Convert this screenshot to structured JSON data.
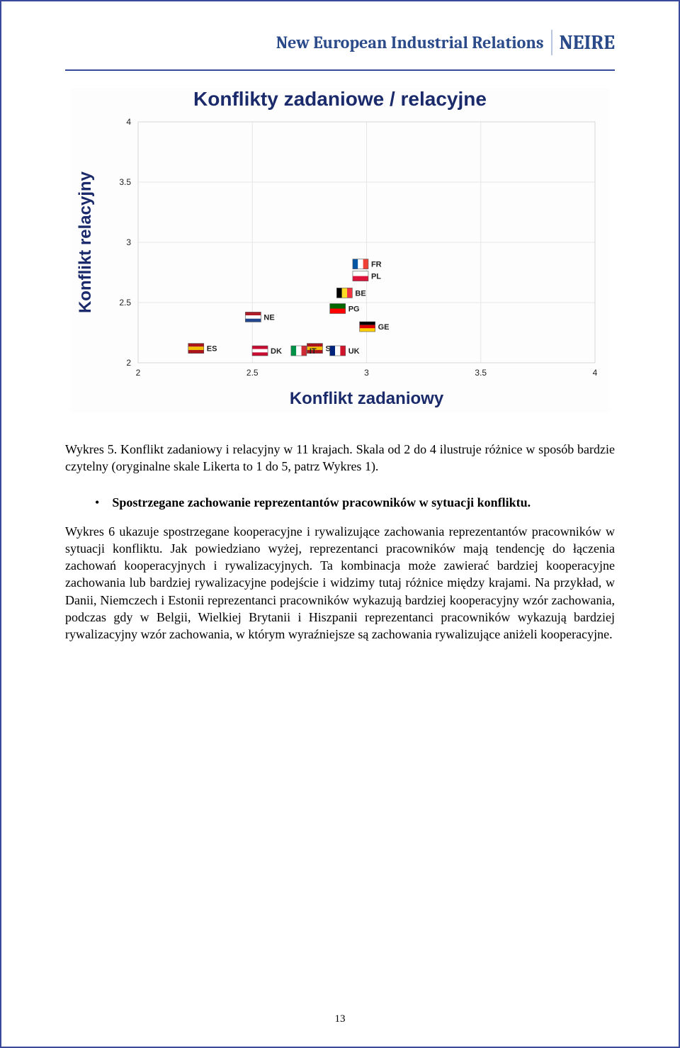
{
  "header": {
    "title": "New European Industrial Relations",
    "logo": "NEIRE"
  },
  "chart": {
    "type": "scatter",
    "title": "Konflikty zadaniowe / relacyjne",
    "xlabel": "Konflikt zadaniowy",
    "ylabel": "Konflikt relacyjny",
    "xlim": [
      2,
      4
    ],
    "ylim": [
      2,
      4
    ],
    "xtick_step": 0.5,
    "ytick_step": 0.5,
    "title_color": "#1a2a6a",
    "axis_label_color": "#1a2a6a",
    "grid_color": "#e6e6e6",
    "background_color": "#ffffff",
    "label_fontsize": 20,
    "tick_fontsize": 12,
    "points": [
      {
        "code": "FR",
        "x": 3.02,
        "y": 2.82,
        "flag_colors": [
          "#0055a4",
          "#ffffff",
          "#ef4135"
        ]
      },
      {
        "code": "PL",
        "x": 3.02,
        "y": 2.72,
        "flag_colors": [
          "#ffffff",
          "#dc143c"
        ]
      },
      {
        "code": "BE",
        "x": 2.95,
        "y": 2.58,
        "flag_colors": [
          "#000000",
          "#fdda24",
          "#ef3340"
        ]
      },
      {
        "code": "PG",
        "x": 2.92,
        "y": 2.45,
        "flag_colors": [
          "#006600",
          "#ff0000"
        ]
      },
      {
        "code": "NE",
        "x": 2.55,
        "y": 2.38,
        "flag_colors": [
          "#ae1c28",
          "#ffffff",
          "#21468b"
        ]
      },
      {
        "code": "GE",
        "x": 3.05,
        "y": 2.3,
        "flag_colors": [
          "#000000",
          "#dd0000",
          "#ffce00"
        ]
      },
      {
        "code": "ES",
        "x": 2.3,
        "y": 2.12,
        "flag_colors": [
          "#aa151b",
          "#f1bf00",
          "#aa151b"
        ]
      },
      {
        "code": "DK",
        "x": 2.58,
        "y": 2.1,
        "flag_colors": [
          "#c60c30",
          "#ffffff",
          "#c60c30"
        ]
      },
      {
        "code": "SP",
        "x": 2.82,
        "y": 2.12,
        "flag_colors": [
          "#aa151b",
          "#f1bf00",
          "#aa151b"
        ]
      },
      {
        "code": "IT",
        "x": 2.75,
        "y": 2.1,
        "flag_colors": [
          "#009246",
          "#ffffff",
          "#ce2b37"
        ]
      },
      {
        "code": "UK",
        "x": 2.92,
        "y": 2.1,
        "flag_colors": [
          "#00247d",
          "#ffffff",
          "#cf142b"
        ]
      }
    ]
  },
  "caption": "Wykres 5. Konflikt zadaniowy i relacyjny w 11 krajach. Skala od 2 do 4 ilustruje różnice w sposób bardzie czytelny (oryginalne skale Likerta to 1 do 5, patrz Wykres 1).",
  "section_heading": "Spostrzegane zachowanie reprezentantów pracowników w sytuacji konfliktu.",
  "body": "Wykres 6 ukazuje spostrzegane  kooperacyjne i rywalizujące zachowania  reprezentantów pracowników w sytuacji konfliktu. Jak powiedziano wyżej, reprezentanci pracowników mają tendencję do łączenia zachowań kooperacyjnych i rywalizacyjnych. Ta kombinacja może zawierać bardziej kooperacyjne zachowania lub bardziej rywalizacyjne podejście i widzimy tutaj różnice między krajami. Na przykład, w Danii, Niemczech i Estonii reprezentanci pracowników wykazują bardziej kooperacyjny wzór zachowania, podczas gdy w Belgii, Wielkiej Brytanii i Hiszpanii  reprezentanci pracowników  wykazują bardziej rywalizacyjny wzór zachowania, w którym wyraźniejsze są zachowania rywalizujące aniżeli kooperacyjne.",
  "page_number": "13"
}
